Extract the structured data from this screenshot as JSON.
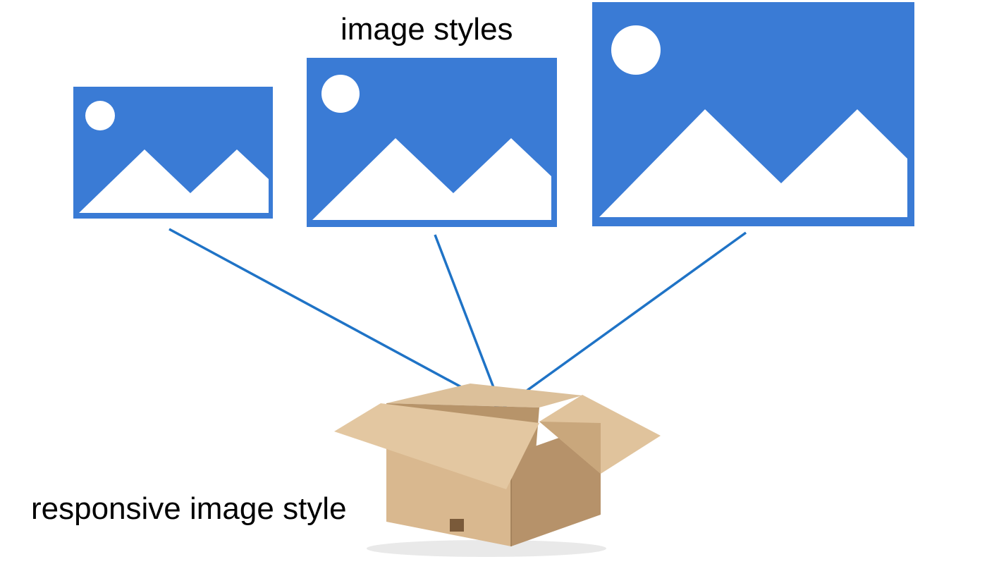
{
  "labels": {
    "image_styles": "image styles",
    "responsive_image_style": "responsive image style"
  },
  "colors": {
    "placeholder_blue": "#3a7bd5",
    "connector_blue": "#1f73c6",
    "cardboard_light": "#e3c7a1",
    "cardboard_mid": "#c9a77c",
    "cardboard_dark": "#a7845c",
    "background": "#ffffff"
  },
  "icons": {
    "image_placeholder": "image-placeholder-icon",
    "box": "cardboard-box-icon"
  }
}
